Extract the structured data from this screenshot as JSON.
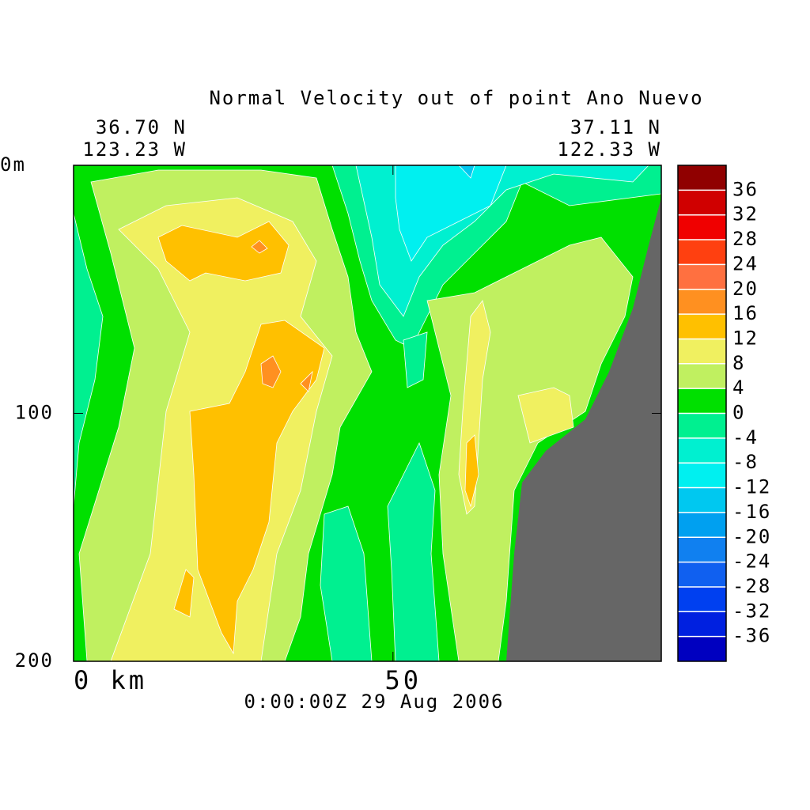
{
  "chart_data": {
    "type": "contour",
    "title": "Normal Velocity out of point Ano Nuevo",
    "start_lat": "36.70 N",
    "start_lon": "123.23 W",
    "end_lat": "37.11 N",
    "end_lon": "122.33 W",
    "time": "0:00:00Z  29 Aug 2006",
    "xlim": [
      0,
      92
    ],
    "xticks": [
      {
        "value": 0,
        "label": "0 km"
      },
      50
    ],
    "ylim": [
      0,
      200
    ],
    "y_inverted": true,
    "yticks": [
      {
        "value": 0,
        "label": "0m"
      },
      100,
      200
    ],
    "levels": [
      -40,
      -36,
      -32,
      -28,
      -24,
      -20,
      -16,
      -12,
      -8,
      -4,
      0,
      4,
      8,
      12,
      16,
      20,
      24,
      28,
      32,
      36,
      40
    ],
    "colors": [
      "#0000c0",
      "#0020e0",
      "#0040f0",
      "#1060f0",
      "#1080f0",
      "#00a0f0",
      "#00c8f0",
      "#00f0f0",
      "#00f0d0",
      "#00f090",
      "#00e000",
      "#c0f060",
      "#f0f060",
      "#ffc000",
      "#ff9020",
      "#ff7040",
      "#ff4010",
      "#f00000",
      "#d00000",
      "#900000"
    ],
    "land_color": "#666666"
  }
}
